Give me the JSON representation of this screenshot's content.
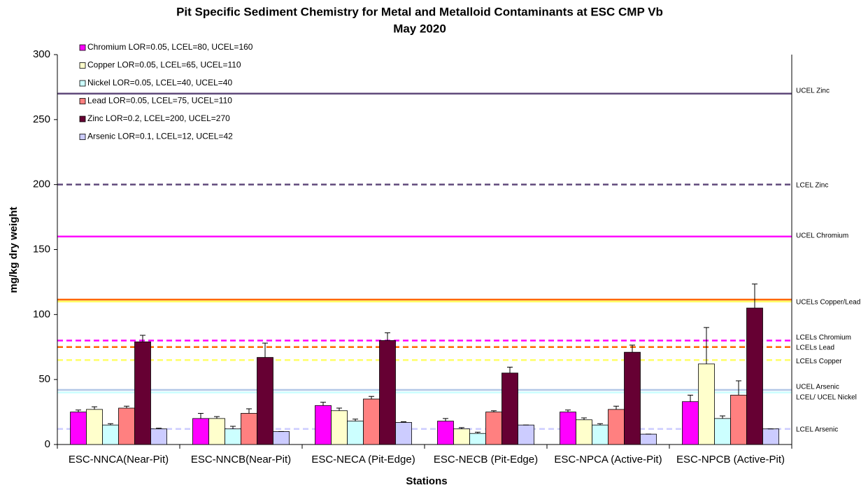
{
  "chart_data": {
    "type": "bar",
    "title": "Pit Specific Sediment Chemistry for Metal and Metalloid Contaminants at ESC CMP Vb",
    "subtitle": "May 2020",
    "x_label": "Stations",
    "y_label": "mg/kg dry weight",
    "categories": [
      "ESC-NNCA(Near-Pit)",
      "ESC-NNCB(Near-Pit)",
      "ESC-NECA (Pit-Edge)",
      "ESC-NECB (Pit-Edge)",
      "ESC-NPCA (Active-Pit)",
      "ESC-NPCB (Active-Pit)"
    ],
    "series": [
      {
        "name": "Chromium LOR=0.05, LCEL=80, UCEL=160",
        "color": "#ff00ff",
        "values": [
          25,
          20,
          30,
          18,
          25,
          33
        ],
        "errors": [
          1.5,
          4,
          2.5,
          2,
          1.5,
          5
        ]
      },
      {
        "name": "Copper LOR=0.05, LCEL=65, UCEL=110",
        "color": "#ffffcc",
        "values": [
          27,
          20,
          26,
          12,
          19,
          62
        ],
        "errors": [
          2,
          1.5,
          2,
          1,
          1.5,
          28
        ]
      },
      {
        "name": "Nickel LOR=0.05, LCEL=40, UCEL=40",
        "color": "#ccffff",
        "values": [
          15,
          12,
          18,
          8.5,
          15,
          20
        ],
        "errors": [
          1,
          2,
          1.5,
          1,
          1,
          2
        ]
      },
      {
        "name": "Lead LOR=0.05, LCEL=75, UCEL=110",
        "color": "#ff8080",
        "values": [
          28,
          24,
          35,
          25,
          27,
          38
        ],
        "errors": [
          1.5,
          3.5,
          2,
          1,
          2.5,
          11
        ]
      },
      {
        "name": "Zinc LOR=0.2, LCEL=200, UCEL=270",
        "color": "#660033",
        "values": [
          79,
          67,
          80,
          55,
          71,
          105
        ],
        "errors": [
          5,
          11,
          6,
          4.5,
          5.5,
          18.5
        ]
      },
      {
        "name": "Arsenic LOR=0.1, LCEL=12, UCEL=42",
        "color": "#ccccff",
        "values": [
          12,
          10,
          17,
          15,
          8,
          12
        ],
        "errors": [
          0.5,
          0,
          0.5,
          0,
          0,
          0
        ]
      }
    ],
    "reference_lines": [
      {
        "label": "UCEL Zinc",
        "value": 270,
        "color": "#604a7b",
        "dashed": false
      },
      {
        "label": "LCEL Zinc",
        "value": 200,
        "color": "#604a7b",
        "dashed": true
      },
      {
        "label": "UCEL Chromium",
        "value": 160,
        "color": "#ff00ff",
        "dashed": false
      },
      {
        "value": 110,
        "color": "#ffff66",
        "dashed": false
      },
      {
        "label": "UCELs Copper/Lead",
        "value": 111.5,
        "color": "#ff6600",
        "dashed": false
      },
      {
        "label": "LCELs Chromium",
        "value": 80,
        "color": "#ff00ff",
        "dashed": true
      },
      {
        "label": "LCELs Lead",
        "value": 75,
        "color": "#ff6600",
        "dashed": true
      },
      {
        "label": "LCELs Copper",
        "value": 65,
        "color": "#ffff66",
        "dashed": true
      },
      {
        "label": "UCEL Arsenic",
        "value": 42,
        "color": "#b4c7e7",
        "dashed": false
      },
      {
        "label": "LCEL/ UCEL Nickel",
        "value": 40,
        "color": "#ccffff",
        "dashed": false
      },
      {
        "label": "LCEL Arsenic",
        "value": 12,
        "color": "#ccccff",
        "dashed": true
      }
    ],
    "ylim": [
      0,
      300
    ],
    "yticks": [
      0,
      50,
      100,
      150,
      200,
      250,
      300
    ],
    "grid": false
  }
}
